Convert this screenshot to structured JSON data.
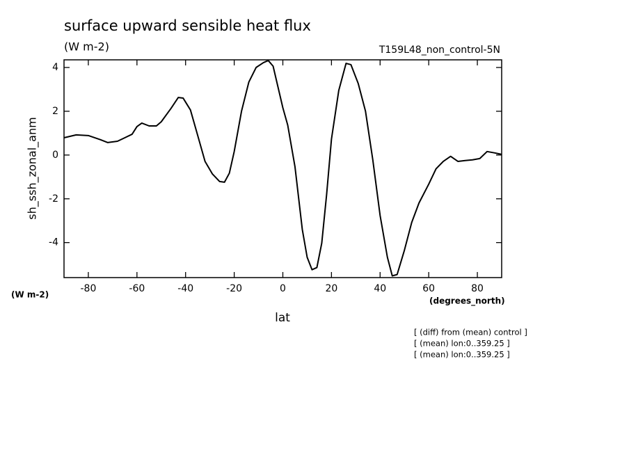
{
  "chart_data": {
    "type": "line",
    "title": "surface upward sensible heat flux",
    "subtitle": "(W m-2)",
    "experiment": "T159L48_non_control-5N",
    "ylabel": "sh_ssh_zonal_anm",
    "y_units": "(W m-2)",
    "xlabel": "lat",
    "x_units": "(degrees_north)",
    "notes": [
      "[ (diff) from (mean) control ]",
      "[ (mean) lon:0..359.25 ]",
      "[ (mean) lon:0..359.25 ]"
    ],
    "x": [
      -90,
      -85,
      -80,
      -75,
      -72,
      -68,
      -65,
      -62,
      -60,
      -58,
      -55,
      -52,
      -50,
      -46,
      -43,
      -41,
      -38,
      -35,
      -32,
      -29,
      -26,
      -24,
      -22,
      -20,
      -17,
      -14,
      -11,
      -8,
      -6,
      -4,
      -2,
      0,
      2,
      5,
      8,
      10,
      12,
      14,
      16,
      18,
      20,
      23,
      26,
      28,
      31,
      34,
      37,
      40,
      43,
      45,
      47,
      50,
      53,
      56,
      60,
      63,
      66,
      69,
      72,
      75,
      78,
      81,
      84,
      87,
      90
    ],
    "series": [
      {
        "color": "#000000",
        "values": [
          0.79,
          0.92,
          0.89,
          0.7,
          0.57,
          0.63,
          0.79,
          0.95,
          1.3,
          1.46,
          1.33,
          1.33,
          1.52,
          2.13,
          2.63,
          2.6,
          2.06,
          0.89,
          -0.29,
          -0.86,
          -1.21,
          -1.24,
          -0.83,
          0.16,
          2.0,
          3.33,
          4.0,
          4.22,
          4.32,
          4.06,
          3.11,
          2.16,
          1.37,
          -0.54,
          -3.4,
          -4.67,
          -5.24,
          -5.14,
          -4.03,
          -1.81,
          0.73,
          2.95,
          4.19,
          4.13,
          3.27,
          2.0,
          -0.22,
          -2.76,
          -4.67,
          -5.52,
          -5.46,
          -4.35,
          -3.08,
          -2.19,
          -1.33,
          -0.63,
          -0.29,
          -0.06,
          -0.29,
          -0.25,
          -0.22,
          -0.16,
          0.16,
          0.1,
          0.03
        ]
      }
    ],
    "xlim": [
      -90,
      90
    ],
    "xticks": [
      -80,
      -60,
      -40,
      -20,
      0,
      20,
      40,
      60,
      80
    ],
    "ylim": [
      -5.6,
      4.35
    ],
    "yticks": [
      -4,
      -2,
      0,
      2,
      4
    ]
  }
}
